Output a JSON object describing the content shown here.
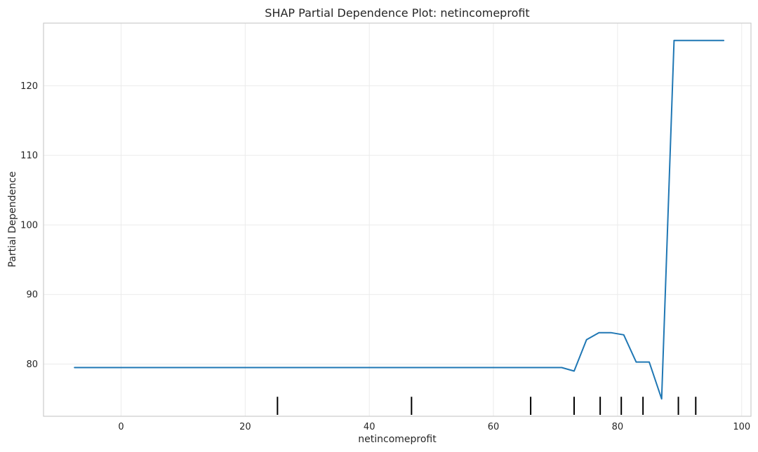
{
  "chart_data": {
    "type": "line",
    "title": "SHAP Partial Dependence Plot: netincomeprofit",
    "xlabel": "netincomeprofit",
    "ylabel": "Partial Dependence",
    "xlim": [
      -12.5,
      101.5
    ],
    "ylim": [
      72.5,
      129
    ],
    "xticks": [
      0,
      20,
      40,
      60,
      80,
      100
    ],
    "yticks": [
      80,
      90,
      100,
      110,
      120
    ],
    "grid": true,
    "line_color": "#1f77b4",
    "series": [
      {
        "x": [
          -7.5,
          -5.5,
          -3.4,
          -1.4,
          0.6,
          2.6,
          4.6,
          6.6,
          8.6,
          10.6,
          12.7,
          14.7,
          16.7,
          18.7,
          20.7,
          22.7,
          24.7,
          26.7,
          28.7,
          30.8,
          32.8,
          34.8,
          36.8,
          38.8,
          40.8,
          42.8,
          44.8,
          46.8,
          48.9,
          50.9,
          52.9,
          54.9,
          56.9,
          58.9,
          60.9,
          62.9,
          64.9,
          67.0,
          69.0,
          71.0,
          73.0,
          75.0,
          77.0,
          79.0,
          81.0,
          83.0,
          85.1,
          87.1,
          89.1,
          91.1,
          93.1,
          95.1,
          97.1
        ],
        "y": [
          79.5,
          79.5,
          79.5,
          79.5,
          79.5,
          79.5,
          79.5,
          79.5,
          79.5,
          79.5,
          79.5,
          79.5,
          79.5,
          79.5,
          79.5,
          79.5,
          79.5,
          79.5,
          79.5,
          79.5,
          79.5,
          79.5,
          79.5,
          79.5,
          79.5,
          79.5,
          79.5,
          79.5,
          79.5,
          79.5,
          79.5,
          79.5,
          79.5,
          79.5,
          79.5,
          79.5,
          79.5,
          79.5,
          79.5,
          79.5,
          79.0,
          83.5,
          84.5,
          84.5,
          84.2,
          80.3,
          80.3,
          75.0,
          126.5,
          126.5,
          126.5,
          126.5,
          126.5
        ]
      }
    ],
    "rug_x": [
      25.2,
      46.8,
      66.0,
      73.0,
      77.2,
      80.6,
      84.1,
      89.8,
      92.6
    ],
    "rug_y_range": [
      72.7,
      75.3
    ]
  }
}
